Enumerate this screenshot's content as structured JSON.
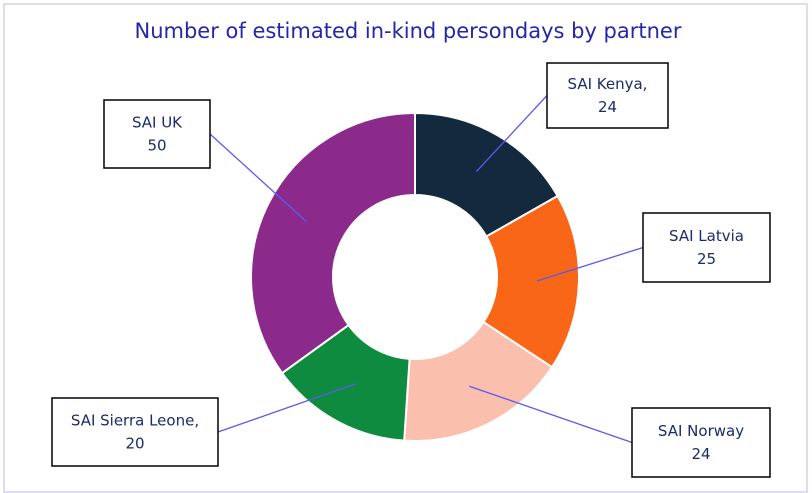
{
  "chart_data": {
    "type": "donut",
    "title": "Number of estimated in-kind persondays by partner",
    "categories": [
      "SAI Kenya,",
      "SAI Latvia",
      "SAI Norway",
      "SAI Sierra Leone,",
      "SAI UK"
    ],
    "values": [
      24,
      25,
      24,
      20,
      50
    ],
    "colors": [
      "#13293d",
      "#f96617",
      "#fbbfad",
      "#0e8b3f",
      "#8b2a8b"
    ]
  }
}
